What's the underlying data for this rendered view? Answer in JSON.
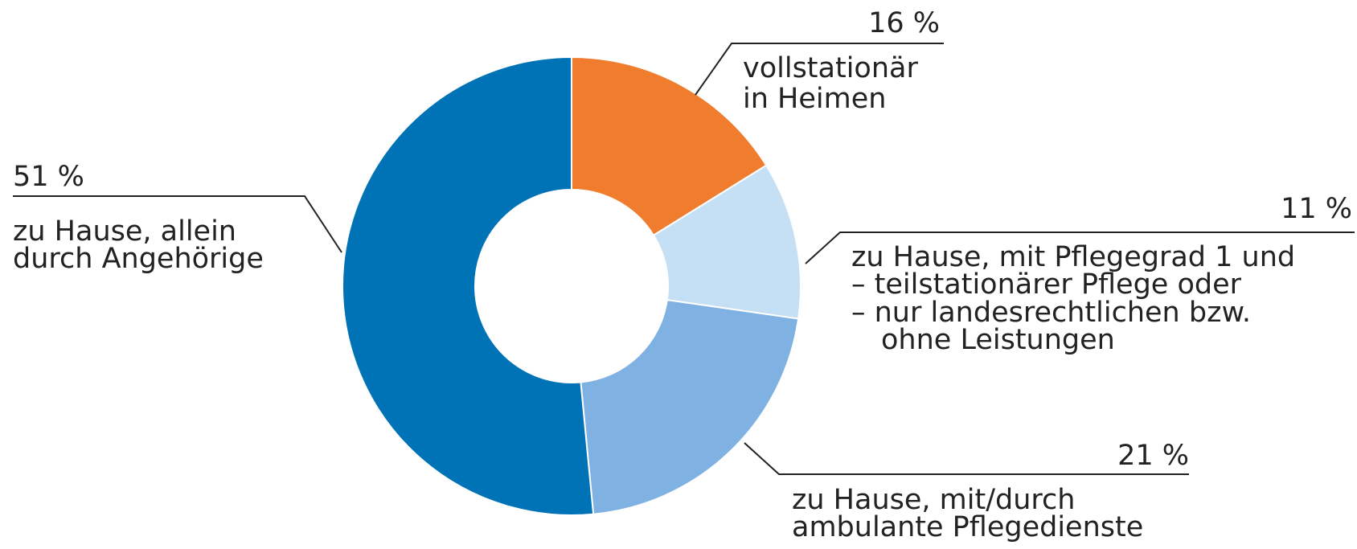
{
  "chart_data": {
    "type": "donut",
    "categories": [
      [
        "vollstationär",
        "in Heimen"
      ],
      [
        "zu Hause, mit Pflegegrad 1 und",
        "– teilstationärer Pflege oder",
        "– nur landesrechtlichen bzw.",
        "ohne Leistungen"
      ],
      [
        "zu Hause, mit/durch",
        "ambulante Pflegedienste"
      ],
      [
        "zu Hause, allein",
        "durch Angehörige"
      ]
    ],
    "values": [
      16,
      11,
      21,
      51
    ],
    "value_labels": [
      "16 %",
      "11 %",
      "21 %",
      "51 %"
    ],
    "colors": [
      "#f07d2d",
      "#c5e0f5",
      "#7fb2e3",
      "#0073b7"
    ]
  }
}
